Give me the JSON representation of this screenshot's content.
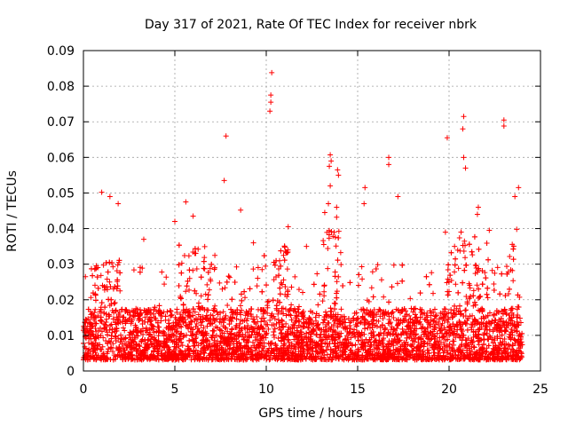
{
  "chart_data": {
    "type": "scatter",
    "title": "Day 317 of 2021, Rate Of TEC Index for receiver nbrk",
    "xlabel": "GPS time / hours",
    "ylabel": "ROTI / TECUs",
    "xlim": [
      0,
      25
    ],
    "ylim": [
      0,
      0.09
    ],
    "xticks": [
      "0",
      "5",
      "10",
      "15",
      "20",
      "25"
    ],
    "yticks": [
      "0",
      "0.01",
      "0.02",
      "0.03",
      "0.04",
      "0.05",
      "0.06",
      "0.07",
      "0.08",
      "0.09"
    ],
    "grid": true,
    "marker": "+",
    "series_color": "#ff0000",
    "notable_points": [
      {
        "x": 10.3,
        "y": 0.0838
      },
      {
        "x": 10.25,
        "y": 0.0775
      },
      {
        "x": 10.25,
        "y": 0.0755
      },
      {
        "x": 10.2,
        "y": 0.073
      },
      {
        "x": 7.8,
        "y": 0.066
      },
      {
        "x": 19.9,
        "y": 0.0655
      },
      {
        "x": 20.8,
        "y": 0.0715
      },
      {
        "x": 20.75,
        "y": 0.068
      },
      {
        "x": 23.0,
        "y": 0.0705
      },
      {
        "x": 23.0,
        "y": 0.0688
      },
      {
        "x": 13.5,
        "y": 0.0607
      },
      {
        "x": 13.55,
        "y": 0.059
      },
      {
        "x": 13.45,
        "y": 0.0575
      },
      {
        "x": 16.7,
        "y": 0.06
      },
      {
        "x": 16.7,
        "y": 0.058
      },
      {
        "x": 13.9,
        "y": 0.0565
      },
      {
        "x": 13.95,
        "y": 0.055
      },
      {
        "x": 13.5,
        "y": 0.052
      },
      {
        "x": 13.4,
        "y": 0.047
      },
      {
        "x": 15.4,
        "y": 0.0515
      },
      {
        "x": 15.35,
        "y": 0.047
      },
      {
        "x": 17.2,
        "y": 0.049
      },
      {
        "x": 20.9,
        "y": 0.057
      },
      {
        "x": 20.8,
        "y": 0.06
      },
      {
        "x": 23.8,
        "y": 0.0515
      },
      {
        "x": 23.6,
        "y": 0.049
      },
      {
        "x": 1.0,
        "y": 0.0502
      },
      {
        "x": 1.45,
        "y": 0.049
      },
      {
        "x": 1.9,
        "y": 0.047
      },
      {
        "x": 5.6,
        "y": 0.0475
      },
      {
        "x": 7.7,
        "y": 0.0535
      },
      {
        "x": 8.6,
        "y": 0.0452
      },
      {
        "x": 11.2,
        "y": 0.0405
      },
      {
        "x": 13.2,
        "y": 0.0445
      },
      {
        "x": 13.85,
        "y": 0.046
      },
      {
        "x": 13.85,
        "y": 0.0432
      },
      {
        "x": 21.6,
        "y": 0.046
      },
      {
        "x": 21.55,
        "y": 0.044
      },
      {
        "x": 22.2,
        "y": 0.0395
      },
      {
        "x": 3.3,
        "y": 0.037
      },
      {
        "x": 5.0,
        "y": 0.042
      },
      {
        "x": 6.0,
        "y": 0.0435
      },
      {
        "x": 9.3,
        "y": 0.036
      },
      {
        "x": 12.2,
        "y": 0.035
      },
      {
        "x": 19.8,
        "y": 0.039
      },
      {
        "x": 20.3,
        "y": 0.035
      },
      {
        "x": 23.7,
        "y": 0.0398
      }
    ],
    "dense_band": {
      "description_range_y": [
        0.002,
        0.03
      ],
      "x_range": [
        0,
        24
      ],
      "median_y": 0.009
    },
    "active_windows": [
      {
        "x_range": [
          0.6,
          2.0
        ],
        "upper_y": 0.035
      },
      {
        "x_range": [
          5.2,
          7.2
        ],
        "upper_y": 0.04
      },
      {
        "x_range": [
          9.8,
          11.2
        ],
        "upper_y": 0.04
      },
      {
        "x_range": [
          13.1,
          14.2
        ],
        "upper_y": 0.045
      },
      {
        "x_range": [
          19.9,
          22.2
        ],
        "upper_y": 0.045
      },
      {
        "x_range": [
          23.2,
          24.0
        ],
        "upper_y": 0.043
      }
    ]
  }
}
